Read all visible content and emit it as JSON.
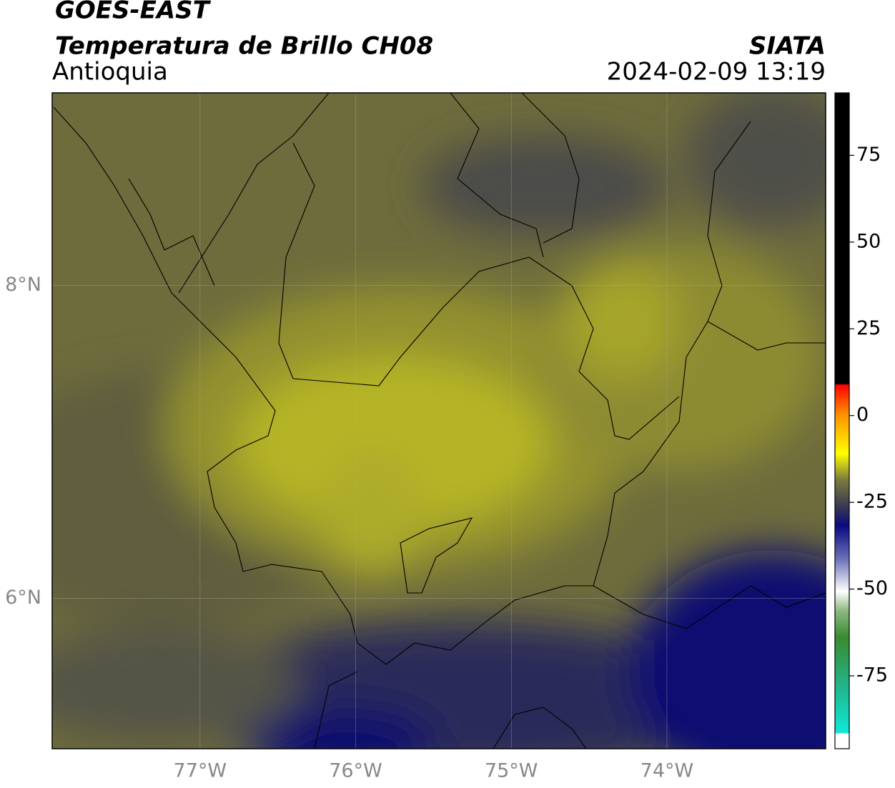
{
  "header": {
    "title": "GOES-EAST",
    "subtitle": "Temperatura de Brillo CH08",
    "region": "Antioquia",
    "source": "SIATA",
    "datetime": "2024-02-09 13:19"
  },
  "map": {
    "xlim": [
      -77.95,
      -72.98
    ],
    "ylim": [
      5.04,
      9.23
    ],
    "xticks": [
      {
        "value": -77,
        "label": "77°W"
      },
      {
        "value": -76,
        "label": "76°W"
      },
      {
        "value": -75,
        "label": "75°W"
      },
      {
        "value": -74,
        "label": "74°W"
      }
    ],
    "yticks": [
      {
        "value": 8,
        "label": "8°N"
      },
      {
        "value": 6,
        "label": "6°N"
      }
    ]
  },
  "colorbar": {
    "lim": [
      -96,
      93
    ],
    "ticks": [
      75,
      50,
      25,
      0,
      -25,
      -50,
      -75
    ]
  }
}
